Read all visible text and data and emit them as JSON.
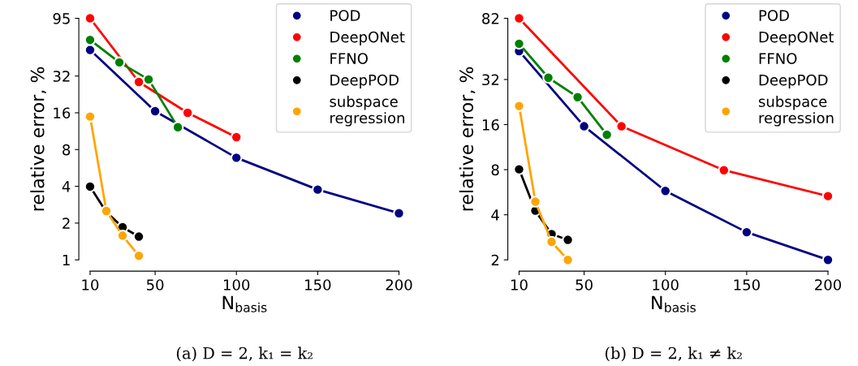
{
  "chart_data": [
    {
      "type": "line",
      "xlabel": "N$_{basis}$",
      "ylabel": "relative error, %",
      "log": "y",
      "xlim": [
        10,
        200
      ],
      "ylim": [
        1,
        95
      ],
      "xticks": [
        10,
        50,
        100,
        150,
        200
      ],
      "yticks": [
        1,
        2,
        4,
        8,
        16,
        32,
        95
      ],
      "marker": "circle",
      "legend": "top right",
      "grid": false,
      "annotations": [
        "(a) D = 2, k₁ = k₂"
      ],
      "series": [
        {
          "name": "POD",
          "color": "#000080",
          "x": [
            10,
            50,
            100,
            150,
            200
          ],
          "values": [
            52.3,
            16.5,
            6.86,
            3.76,
            2.41
          ]
        },
        {
          "name": "DeepONet",
          "color": "#ff0000",
          "x": [
            10,
            40,
            70,
            100
          ],
          "values": [
            95,
            28.6,
            16.0,
            10.1
          ]
        },
        {
          "name": "FFNO",
          "color": "#008000",
          "x": [
            10,
            28,
            46,
            64
          ],
          "values": [
            63.2,
            41.4,
            30.0,
            12.2
          ]
        },
        {
          "name": "DeepPOD",
          "color": "#000000",
          "x": [
            10,
            20,
            30,
            40
          ],
          "values": [
            3.98,
            2.46,
            1.85,
            1.55
          ]
        },
        {
          "name": "subspace\nregression",
          "color": "#ffa500",
          "x": [
            10,
            20,
            30,
            40
          ],
          "values": [
            14.9,
            2.51,
            1.58,
            1.08
          ]
        }
      ]
    },
    {
      "type": "line",
      "xlabel": "N$_{basis}$",
      "ylabel": "relative error, %",
      "log": "y",
      "xlim": [
        10,
        200
      ],
      "ylim": [
        2,
        82
      ],
      "xticks": [
        10,
        50,
        100,
        150,
        200
      ],
      "yticks": [
        2,
        4,
        8,
        16,
        32,
        82
      ],
      "marker": "circle",
      "legend": "top right",
      "grid": false,
      "annotations": [
        "(b) D = 2, k₁ ≠ k₂"
      ],
      "series": [
        {
          "name": "POD",
          "color": "#000080",
          "x": [
            10,
            50,
            100,
            150,
            200
          ],
          "values": [
            49.5,
            15.6,
            5.77,
            3.06,
            2.0
          ]
        },
        {
          "name": "DeepONet",
          "color": "#ff0000",
          "x": [
            10,
            73,
            136,
            200
          ],
          "values": [
            82,
            15.6,
            7.94,
            5.33
          ]
        },
        {
          "name": "FFNO",
          "color": "#008000",
          "x": [
            10,
            28,
            46,
            64
          ],
          "values": [
            55.5,
            32.9,
            24.4,
            13.7
          ]
        },
        {
          "name": "DeepPOD",
          "color": "#000000",
          "x": [
            10,
            20,
            30,
            40
          ],
          "values": [
            8.05,
            4.26,
            2.97,
            2.72
          ]
        },
        {
          "name": "subspace\nregression",
          "color": "#ffa500",
          "x": [
            10,
            20,
            30,
            40
          ],
          "values": [
            21.3,
            4.89,
            2.64,
            2.0
          ]
        }
      ]
    }
  ]
}
